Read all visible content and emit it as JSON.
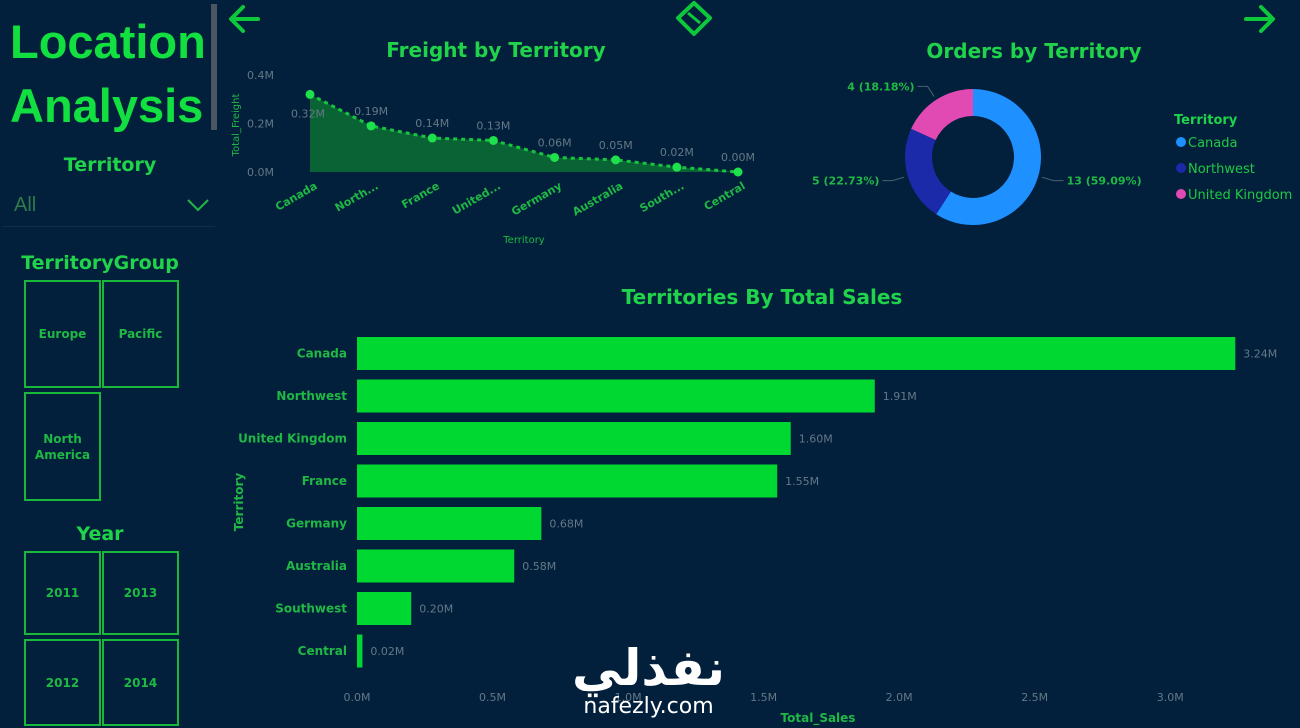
{
  "page": {
    "title_line1": "Location",
    "title_line2": "Analysis"
  },
  "nav": {
    "back_icon": "arrow-left-icon",
    "focus_icon": "diamond-icon",
    "forward_icon": "arrow-right-icon"
  },
  "filters": {
    "territory_label": "Territory",
    "territory_value": "All",
    "group_label": "TerritoryGroup",
    "groups": [
      "Europe",
      "Pacific",
      "North America"
    ],
    "year_label": "Year",
    "years": [
      "2011",
      "2013",
      "2012",
      "2014"
    ]
  },
  "colors": {
    "background": "#02203b",
    "accent": "#00d832",
    "canada": "#1e90ff",
    "northwest": "#1b2aa8",
    "uk": "#e14ab3"
  },
  "chart_data": [
    {
      "type": "area",
      "title": "Freight by Territory",
      "xlabel": "Territory",
      "ylabel": "Total_Freight",
      "categories": [
        "Canada",
        "North...",
        "France",
        "United...",
        "Germany",
        "Australia",
        "South...",
        "Central"
      ],
      "values": [
        0.32,
        0.19,
        0.14,
        0.13,
        0.06,
        0.05,
        0.02,
        0.0
      ],
      "data_labels": [
        "0.32M",
        "0.19M",
        "0.14M",
        "0.13M",
        "0.06M",
        "0.05M",
        "0.02M",
        "0.00M"
      ],
      "yticks": [
        "0.0M",
        "0.2M",
        "0.4M"
      ],
      "ylim": [
        0,
        0.4
      ]
    },
    {
      "type": "pie",
      "title": "Orders by Territory",
      "legend_title": "Territory",
      "legend_position": "right",
      "categories": [
        "Canada",
        "Northwest",
        "United Kingdom"
      ],
      "values": [
        13,
        5,
        4
      ],
      "data_labels": [
        "13 (59.09%)",
        "5 (22.73%)",
        "4 (18.18%)"
      ]
    },
    {
      "type": "bar",
      "orientation": "horizontal",
      "title": "Territories By Total Sales",
      "xlabel": "Total_Sales",
      "ylabel": "Territory",
      "categories": [
        "Canada",
        "Northwest",
        "United Kingdom",
        "France",
        "Germany",
        "Australia",
        "Southwest",
        "Central"
      ],
      "values": [
        3.24,
        1.91,
        1.6,
        1.55,
        0.68,
        0.58,
        0.2,
        0.02
      ],
      "data_labels": [
        "3.24M",
        "1.91M",
        "1.60M",
        "1.55M",
        "0.68M",
        "0.58M",
        "0.20M",
        "0.02M"
      ],
      "xticks": [
        "0.0M",
        "0.5M",
        "1.0M",
        "1.5M",
        "2.0M",
        "2.5M",
        "3.0M"
      ],
      "xlim": [
        0,
        3.25
      ]
    }
  ],
  "watermark": {
    "arabic": "نفذلي",
    "latin": "nafezly.com"
  }
}
